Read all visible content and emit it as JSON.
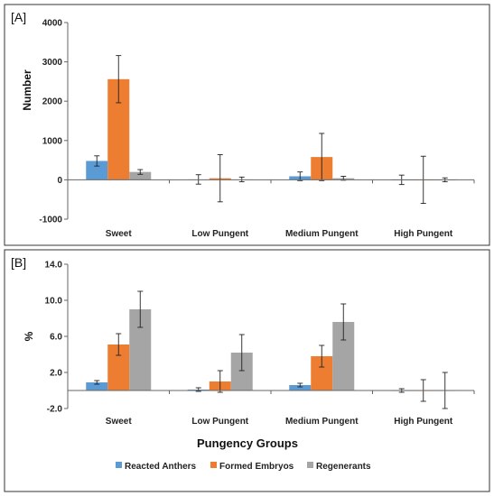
{
  "chart_data": [
    {
      "panel_label": "[A]",
      "type": "bar",
      "ylabel": "Number",
      "xlabel": "",
      "ylim": [
        -1000,
        4000
      ],
      "yticks": [
        "-1000",
        "0",
        "1000",
        "2000",
        "3000",
        "4000"
      ],
      "categories": [
        "Sweet",
        "Low Pungent",
        "Medium Pungent",
        "High Pungent"
      ],
      "grid": false,
      "series": [
        {
          "name": "Reacted Anthers",
          "values": [
            480,
            10,
            90,
            0
          ],
          "error": [
            130,
            120,
            110,
            120
          ]
        },
        {
          "name": "Formed Embryos",
          "values": [
            2560,
            40,
            580,
            0
          ],
          "error": [
            600,
            600,
            600,
            600
          ]
        },
        {
          "name": "Regenerants",
          "values": [
            200,
            10,
            40,
            0
          ],
          "error": [
            60,
            60,
            50,
            50
          ]
        }
      ]
    },
    {
      "panel_label": "[B]",
      "type": "bar",
      "ylabel": "%",
      "xlabel": "Pungency Groups",
      "ylim": [
        -2.0,
        14.0
      ],
      "yticks": [
        "-2.0",
        "2.0",
        "6.0",
        "10.0",
        "14.0"
      ],
      "categories": [
        "Sweet",
        "Low Pungent",
        "Medium Pungent",
        "High Pungent"
      ],
      "grid": false,
      "legend": "bottom",
      "series": [
        {
          "name": "Reacted Anthers",
          "values": [
            0.9,
            0.1,
            0.6,
            0.0
          ],
          "error": [
            0.2,
            0.2,
            0.2,
            0.2
          ]
        },
        {
          "name": "Formed Embryos",
          "values": [
            5.1,
            1.0,
            3.8,
            0.0
          ],
          "error": [
            1.2,
            1.2,
            1.2,
            1.2
          ]
        },
        {
          "name": "Regenerants",
          "values": [
            9.0,
            4.2,
            7.6,
            0.0
          ],
          "error": [
            2.0,
            2.0,
            2.0,
            2.0
          ]
        }
      ]
    }
  ],
  "colors": {
    "Reacted Anthers": "#5b9bd5",
    "Formed Embryos": "#ed7d31",
    "Regenerants": "#a5a5a5"
  }
}
